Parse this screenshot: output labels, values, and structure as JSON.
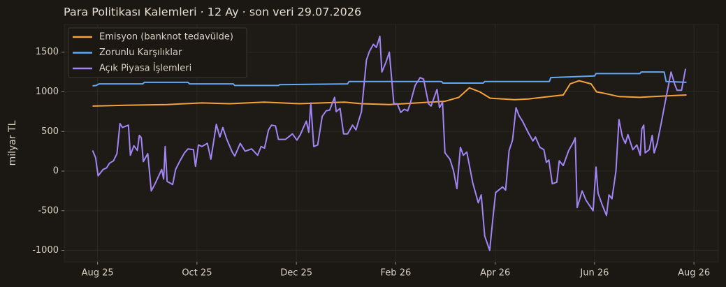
{
  "chart_data": {
    "type": "line",
    "title": "Para Politikası Kalemleri · 12 Ay · son veri 29.07.2026",
    "y_label": "milyar TL",
    "xlim": [
      -0.67,
      12.49
    ],
    "xticks": [
      {
        "value": 0,
        "label": "Aug 25"
      },
      {
        "value": 2,
        "label": "Oct 25"
      },
      {
        "value": 4,
        "label": "Dec 25"
      },
      {
        "value": 6,
        "label": "Feb 26"
      },
      {
        "value": 8,
        "label": "Apr 26"
      },
      {
        "value": 10,
        "label": "Jun 26"
      },
      {
        "value": 12,
        "label": "Aug 26"
      }
    ],
    "ylim": [
      -1145,
      1850
    ],
    "yticks": [
      -1000,
      -500,
      0,
      500,
      1000,
      1500
    ],
    "grid": true,
    "legend": "upper left",
    "series": [
      {
        "name": "Emisyon (banknot tedavülde)",
        "color": "#f5a23a",
        "x": [
          -0.1,
          0.56,
          1.4,
          2.1,
          2.66,
          3.36,
          4.06,
          4.97,
          5.31,
          5.87,
          6.43,
          6.99,
          7.27,
          7.48,
          7.69,
          7.9,
          8.39,
          8.67,
          9.09,
          9.37,
          9.51,
          9.69,
          9.93,
          10.04,
          10.21,
          10.49,
          10.91,
          11.19,
          11.47,
          11.85
        ],
        "values": [
          820,
          830,
          840,
          860,
          850,
          870,
          850,
          870,
          850,
          840,
          860,
          880,
          930,
          1050,
          1000,
          920,
          900,
          910,
          940,
          960,
          1100,
          1140,
          1100,
          1000,
          980,
          940,
          930,
          940,
          950,
          960
        ]
      },
      {
        "name": "Zorunlu Karşılıklar",
        "color": "#62a8f5",
        "x": [
          -0.1,
          -0.03,
          0.03,
          0.91,
          0.94,
          1.82,
          1.85,
          2.73,
          2.76,
          3.64,
          3.66,
          5.03,
          5.06,
          6.92,
          6.95,
          7.76,
          7.79,
          9.09,
          9.12,
          10.0,
          10.03,
          10.91,
          10.94,
          11.4,
          11.44,
          11.85
        ],
        "values": [
          1075,
          1080,
          1100,
          1100,
          1120,
          1120,
          1100,
          1100,
          1080,
          1080,
          1090,
          1100,
          1130,
          1130,
          1110,
          1110,
          1130,
          1130,
          1180,
          1200,
          1230,
          1230,
          1250,
          1250,
          1130,
          1120
        ]
      },
      {
        "name": "Açık Piyasa İşlemleri",
        "color": "#a285f5",
        "x": [
          -0.1,
          -0.04,
          0.01,
          0.11,
          0.18,
          0.24,
          0.32,
          0.39,
          0.45,
          0.5,
          0.62,
          0.66,
          0.73,
          0.8,
          0.84,
          0.88,
          0.92,
          1.01,
          1.08,
          1.15,
          1.29,
          1.33,
          1.36,
          1.4,
          1.51,
          1.57,
          1.65,
          1.75,
          1.82,
          1.93,
          1.97,
          2.03,
          2.1,
          2.21,
          2.28,
          2.39,
          2.46,
          2.52,
          2.6,
          2.71,
          2.76,
          2.87,
          2.97,
          3.1,
          3.22,
          3.29,
          3.36,
          3.44,
          3.5,
          3.58,
          3.64,
          3.78,
          3.92,
          4.01,
          4.08,
          4.15,
          4.2,
          4.25,
          4.29,
          4.35,
          4.43,
          4.52,
          4.6,
          4.67,
          4.77,
          4.8,
          4.88,
          4.95,
          5.03,
          5.13,
          5.2,
          5.26,
          5.31,
          5.41,
          5.47,
          5.55,
          5.61,
          5.68,
          5.72,
          5.8,
          5.87,
          5.96,
          6.03,
          6.1,
          6.17,
          6.24,
          6.29,
          6.39,
          6.49,
          6.56,
          6.66,
          6.71,
          6.83,
          6.88,
          6.94,
          6.99,
          7.09,
          7.16,
          7.23,
          7.3,
          7.36,
          7.43,
          7.55,
          7.66,
          7.72,
          7.79,
          7.89,
          7.97,
          8.01,
          8.15,
          8.21,
          8.28,
          8.35,
          8.42,
          8.48,
          8.55,
          8.67,
          8.76,
          8.81,
          8.9,
          8.98,
          9.03,
          9.08,
          9.15,
          9.24,
          9.29,
          9.37,
          9.48,
          9.57,
          9.61,
          9.65,
          9.75,
          9.83,
          9.97,
          10.03,
          10.07,
          10.15,
          10.24,
          10.29,
          10.35,
          10.43,
          10.49,
          10.56,
          10.62,
          10.67,
          10.77,
          10.85,
          10.92,
          10.95,
          10.99,
          11.02,
          11.1,
          11.16,
          11.2,
          11.26,
          11.34,
          11.43,
          11.48,
          11.54,
          11.61,
          11.66,
          11.75,
          11.83
        ],
        "values": [
          260,
          170,
          -60,
          20,
          40,
          100,
          130,
          220,
          600,
          550,
          580,
          200,
          320,
          260,
          450,
          420,
          120,
          220,
          -250,
          -170,
          20,
          -100,
          310,
          -130,
          -170,
          20,
          120,
          230,
          280,
          270,
          60,
          330,
          310,
          350,
          150,
          590,
          430,
          550,
          400,
          240,
          190,
          350,
          250,
          280,
          200,
          310,
          290,
          520,
          580,
          570,
          400,
          400,
          470,
          390,
          460,
          560,
          630,
          490,
          860,
          310,
          330,
          690,
          760,
          770,
          930,
          750,
          790,
          470,
          470,
          580,
          520,
          650,
          750,
          1400,
          1510,
          1600,
          1560,
          1700,
          1250,
          1370,
          1500,
          850,
          850,
          740,
          780,
          760,
          850,
          1080,
          1180,
          1160,
          850,
          820,
          1030,
          800,
          870,
          230,
          150,
          10,
          -220,
          300,
          200,
          240,
          -150,
          -400,
          -300,
          -820,
          -1000,
          -500,
          -270,
          -200,
          -240,
          260,
          390,
          800,
          700,
          630,
          480,
          380,
          430,
          300,
          270,
          110,
          140,
          -160,
          -140,
          130,
          70,
          260,
          360,
          420,
          -460,
          -250,
          -370,
          -500,
          50,
          -280,
          -420,
          -560,
          -300,
          -350,
          0,
          650,
          430,
          350,
          460,
          270,
          330,
          200,
          530,
          580,
          230,
          270,
          450,
          230,
          350,
          600,
          900,
          1060,
          1250,
          1100,
          1020,
          1020,
          1290
        ]
      }
    ]
  }
}
